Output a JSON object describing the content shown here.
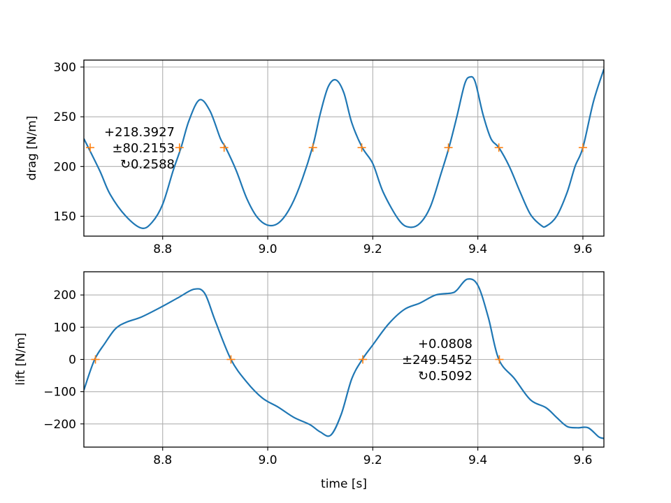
{
  "chart_data": [
    {
      "type": "line",
      "name": "drag",
      "ylabel": "drag [N/m]",
      "xlabel": "",
      "xlim": [
        8.65,
        9.64
      ],
      "ylim": [
        130,
        307
      ],
      "xticks": [
        8.8,
        9.0,
        9.2,
        9.4,
        9.6
      ],
      "xtick_labels": [
        "8.8",
        "9.0",
        "9.2",
        "9.4",
        "9.6"
      ],
      "yticks": [
        150,
        200,
        250,
        300
      ],
      "ytick_labels": [
        "150",
        "200",
        "250",
        "300"
      ],
      "grid": true,
      "series": [
        {
          "color": "#1f77b4",
          "x": [
            8.65,
            8.68,
            8.7,
            8.73,
            8.76,
            8.78,
            8.8,
            8.82,
            8.835,
            8.85,
            8.87,
            8.89,
            8.91,
            8.92,
            8.94,
            8.96,
            8.98,
            9.0,
            9.02,
            9.04,
            9.06,
            9.085,
            9.1,
            9.115,
            9.13,
            9.145,
            9.16,
            9.18,
            9.2,
            9.22,
            9.25,
            9.27,
            9.29,
            9.31,
            9.33,
            9.345,
            9.36,
            9.375,
            9.385,
            9.395,
            9.41,
            9.425,
            9.44,
            9.46,
            9.48,
            9.5,
            9.52,
            9.53,
            9.55,
            9.57,
            9.585,
            9.6,
            9.62,
            9.64
          ],
          "y": [
            228,
            196,
            172,
            150,
            138,
            144,
            162,
            196,
            219,
            246,
            267,
            256,
            228,
            219,
            196,
            168,
            149,
            141,
            143,
            156,
            179,
            219,
            253,
            280,
            287,
            274,
            244,
            219,
            203,
            174,
            146,
            139,
            143,
            160,
            193,
            219,
            250,
            283,
            290,
            285,
            252,
            228,
            219,
            200,
            175,
            152,
            141,
            140,
            150,
            174,
            200,
            219,
            265,
            298
          ]
        }
      ],
      "markers": {
        "color": "#ff7f0e",
        "symbol": "+",
        "x": [
          8.662,
          8.832,
          8.917,
          9.086,
          9.179,
          9.344,
          9.44,
          9.6
        ],
        "y": [
          219,
          219,
          219,
          219,
          219,
          219,
          219,
          219
        ]
      },
      "annotation": [
        "+218.3927",
        "±80.2153",
        "↻0.2588"
      ]
    },
    {
      "type": "line",
      "name": "lift",
      "ylabel": "lift [N/m]",
      "xlabel": "time [s]",
      "xlim": [
        8.65,
        9.64
      ],
      "ylim": [
        -272,
        272
      ],
      "xticks": [
        8.8,
        9.0,
        9.2,
        9.4,
        9.6
      ],
      "xtick_labels": [
        "8.8",
        "9.0",
        "9.2",
        "9.4",
        "9.6"
      ],
      "yticks": [
        -200,
        -100,
        0,
        100,
        200
      ],
      "ytick_labels": [
        "−200",
        "−100",
        "0",
        "100",
        "200"
      ],
      "grid": true,
      "series": [
        {
          "color": "#1f77b4",
          "x": [
            8.65,
            8.67,
            8.69,
            8.71,
            8.73,
            8.76,
            8.8,
            8.83,
            8.86,
            8.88,
            8.9,
            8.93,
            8.96,
            8.99,
            9.02,
            9.05,
            9.08,
            9.1,
            9.12,
            9.14,
            9.16,
            9.18,
            9.2,
            9.23,
            9.26,
            9.29,
            9.32,
            9.35,
            9.36,
            9.38,
            9.4,
            9.42,
            9.44,
            9.47,
            9.5,
            9.53,
            9.55,
            9.57,
            9.59,
            9.61,
            9.63,
            9.64
          ],
          "y": [
            -95,
            -2,
            50,
            95,
            115,
            132,
            165,
            192,
            218,
            205,
            120,
            0,
            -70,
            -120,
            -148,
            -180,
            -202,
            -225,
            -235,
            -170,
            -60,
            0,
            45,
            110,
            155,
            175,
            200,
            206,
            215,
            249,
            230,
            130,
            0,
            -60,
            -125,
            -150,
            -180,
            -208,
            -212,
            -212,
            -240,
            -245
          ]
        }
      ],
      "markers": {
        "color": "#ff7f0e",
        "symbol": "+",
        "x": [
          8.672,
          8.93,
          9.181,
          9.441
        ],
        "y": [
          0,
          0,
          0,
          0
        ]
      },
      "annotation": [
        "+0.0808",
        "±249.5452",
        "↻0.5092"
      ]
    }
  ]
}
